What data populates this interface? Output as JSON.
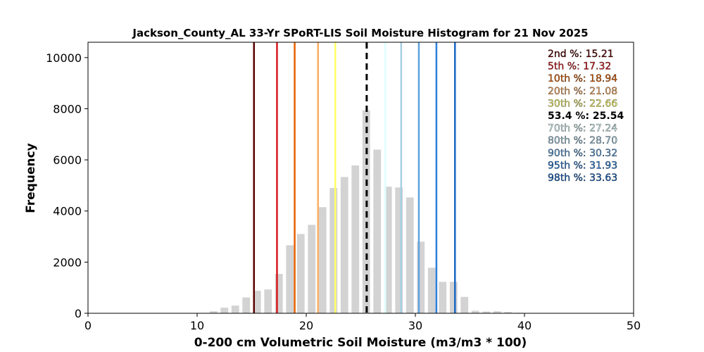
{
  "chart_data": {
    "type": "bar",
    "title": "Jackson_County_AL 33-Yr SPoRT-LIS Soil Moisture Histogram for 21 Nov 2025",
    "xlabel": "0-200 cm Volumetric Soil Moisture (m3/m3 * 100)",
    "ylabel": "Frequency",
    "xlim": [
      0,
      50
    ],
    "ylim": [
      0,
      10600
    ],
    "xticks": [
      0,
      10,
      20,
      30,
      40,
      50
    ],
    "yticks": [
      0,
      2000,
      4000,
      6000,
      8000,
      10000
    ],
    "bin_width": 1,
    "bar_color": "#d3d3d3",
    "bars": [
      {
        "x": 11.5,
        "y": 80
      },
      {
        "x": 12.5,
        "y": 220
      },
      {
        "x": 13.5,
        "y": 300
      },
      {
        "x": 14.5,
        "y": 620
      },
      {
        "x": 15.5,
        "y": 880
      },
      {
        "x": 16.5,
        "y": 930
      },
      {
        "x": 17.5,
        "y": 1540
      },
      {
        "x": 18.5,
        "y": 2660
      },
      {
        "x": 19.5,
        "y": 3100
      },
      {
        "x": 20.5,
        "y": 3460
      },
      {
        "x": 21.5,
        "y": 4150
      },
      {
        "x": 22.5,
        "y": 4900
      },
      {
        "x": 23.5,
        "y": 5330
      },
      {
        "x": 24.5,
        "y": 5780
      },
      {
        "x": 25.5,
        "y": 7940
      },
      {
        "x": 26.5,
        "y": 6400
      },
      {
        "x": 27.5,
        "y": 4950
      },
      {
        "x": 28.5,
        "y": 4920
      },
      {
        "x": 29.5,
        "y": 4530
      },
      {
        "x": 30.5,
        "y": 2800
      },
      {
        "x": 31.5,
        "y": 1780
      },
      {
        "x": 32.5,
        "y": 1230
      },
      {
        "x": 33.5,
        "y": 1230
      },
      {
        "x": 34.5,
        "y": 640
      },
      {
        "x": 35.5,
        "y": 100
      },
      {
        "x": 36.5,
        "y": 70
      },
      {
        "x": 37.5,
        "y": 80
      },
      {
        "x": 38.5,
        "y": 50
      },
      {
        "x": 39.5,
        "y": 20
      }
    ],
    "percentiles": [
      {
        "label": "2nd %: 15.21",
        "value": 15.21,
        "color": "#5c0000",
        "dashed": false
      },
      {
        "label": "5th %: 17.32",
        "value": 17.32,
        "color": "#d7191c",
        "dashed": false
      },
      {
        "label": "10th %: 18.94",
        "value": 18.94,
        "color": "#e66101",
        "dashed": false
      },
      {
        "label": "20th %: 21.08",
        "value": 21.08,
        "color": "#fdae61",
        "dashed": false
      },
      {
        "label": "30th %: 22.66",
        "value": 22.66,
        "color": "#ffff66",
        "dashed": false
      },
      {
        "label": "53.4 %: 25.54",
        "value": 25.54,
        "color": "#000000",
        "dashed": true
      },
      {
        "label": "70th %: 27.24",
        "value": 27.24,
        "color": "#e0ffff",
        "dashed": false
      },
      {
        "label": "80th %: 28.70",
        "value": 28.7,
        "color": "#a6cee3",
        "dashed": false
      },
      {
        "label": "90th %: 30.32",
        "value": 30.32,
        "color": "#5fa2e0",
        "dashed": false
      },
      {
        "label": "95th %: 31.93",
        "value": 31.93,
        "color": "#2c7fdb",
        "dashed": false
      },
      {
        "label": "98th %: 33.63",
        "value": 33.63,
        "color": "#1a66c4",
        "dashed": false
      }
    ],
    "legend_placement": "top-right",
    "grid": false
  }
}
